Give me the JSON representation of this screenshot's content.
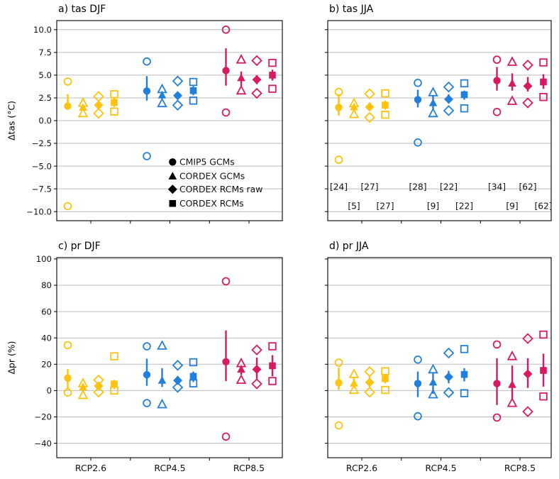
{
  "chart_data": {
    "type": "scatter",
    "grid": true,
    "legend_position": "lower-right-of-panel-a",
    "colors": {
      "grid": "#BBBBBB",
      "axis": "#000000",
      "text": "#111111",
      "legend_marker": "#000000"
    },
    "scenarios": [
      {
        "label": "RCP2.6",
        "color": "#FFC20E"
      },
      {
        "label": "RCP4.5",
        "color": "#2280DC"
      },
      {
        "label": "RCP8.5",
        "color": "#D81B60"
      }
    ],
    "datasets": [
      {
        "label": "CMIP5 GCMs",
        "marker": "circle"
      },
      {
        "label": "CORDEX GCMs",
        "marker": "triangle"
      },
      {
        "label": "CORDEX RCMs raw",
        "marker": "diamond"
      },
      {
        "label": "CORDEX RCMs",
        "marker": "square"
      }
    ],
    "panels": [
      {
        "id": "a",
        "title": "a) tas DJF",
        "ylabel": "Δtas (°C)",
        "ylim": [
          -11,
          11
        ],
        "yticks": [
          -10,
          -7.5,
          -5,
          -2.5,
          0,
          2.5,
          5,
          7.5,
          10
        ],
        "ytick_labels": [
          "−10.0",
          "−7.5",
          "−5.0",
          "−2.5",
          "0.0",
          "2.5",
          "5.0",
          "7.5",
          "10.0"
        ],
        "show_xtick_labels": false,
        "legend_in_panel": true,
        "groups": [
          {
            "scenario": "RCP2.6",
            "series": [
              {
                "marker": "circle",
                "median": 1.6,
                "bar": [
                  1.2,
                  2.9
                ],
                "outliers": [
                  4.3,
                  -9.4
                ]
              },
              {
                "marker": "triangle",
                "median": 1.45,
                "bar": [
                  1.2,
                  1.75
                ],
                "outliers": [
                  1.95,
                  0.8
                ]
              },
              {
                "marker": "diamond",
                "median": 1.7,
                "bar": [
                  1.4,
                  2.0
                ],
                "outliers": [
                  2.65,
                  0.8
                ]
              },
              {
                "marker": "square",
                "median": 2.0,
                "bar": [
                  1.5,
                  2.5
                ],
                "outliers": [
                  2.9,
                  1.0
                ]
              }
            ]
          },
          {
            "scenario": "RCP4.5",
            "series": [
              {
                "marker": "circle",
                "median": 3.25,
                "bar": [
                  2.2,
                  4.9
                ],
                "outliers": [
                  6.5,
                  -3.9
                ]
              },
              {
                "marker": "triangle",
                "median": 2.8,
                "bar": [
                  2.35,
                  3.2
                ],
                "outliers": [
                  3.45,
                  1.9
                ]
              },
              {
                "marker": "diamond",
                "median": 2.75,
                "bar": [
                  2.3,
                  3.1
                ],
                "outliers": [
                  4.35,
                  1.7
                ]
              },
              {
                "marker": "square",
                "median": 3.3,
                "bar": [
                  2.8,
                  3.8
                ],
                "outliers": [
                  4.25,
                  2.2
                ]
              }
            ]
          },
          {
            "scenario": "RCP8.5",
            "series": [
              {
                "marker": "circle",
                "median": 5.5,
                "bar": [
                  3.85,
                  7.95
                ],
                "outliers": [
                  10.0,
                  0.9
                ]
              },
              {
                "marker": "triangle",
                "median": 4.7,
                "bar": [
                  3.8,
                  5.4
                ],
                "outliers": [
                  6.7,
                  3.3
                ]
              },
              {
                "marker": "diamond",
                "median": 4.5,
                "bar": [
                  4.0,
                  5.0
                ],
                "outliers": [
                  6.6,
                  3.0
                ]
              },
              {
                "marker": "square",
                "median": 5.0,
                "bar": [
                  4.4,
                  5.6
                ],
                "outliers": [
                  6.35,
                  3.5
                ]
              }
            ]
          }
        ]
      },
      {
        "id": "b",
        "title": "b) tas JJA",
        "ylabel": "",
        "ylim": [
          -11,
          11
        ],
        "yticks": [
          -10,
          -7.5,
          -5,
          -2.5,
          0,
          2.5,
          5,
          7.5,
          10
        ],
        "show_xtick_labels": false,
        "legend_in_panel": false,
        "counts": [
          [
            24,
            5,
            27,
            27
          ],
          [
            28,
            9,
            22,
            22
          ],
          [
            34,
            9,
            62,
            62
          ]
        ],
        "groups": [
          {
            "scenario": "RCP2.6",
            "series": [
              {
                "marker": "circle",
                "median": 1.45,
                "bar": [
                  0.55,
                  2.9
                ],
                "outliers": [
                  3.15,
                  -4.3
                ]
              },
              {
                "marker": "triangle",
                "median": 1.5,
                "bar": [
                  1.15,
                  1.8
                ],
                "outliers": [
                  1.9,
                  0.7
                ]
              },
              {
                "marker": "diamond",
                "median": 1.5,
                "bar": [
                  1.1,
                  2.0
                ],
                "outliers": [
                  2.95,
                  0.35
                ]
              },
              {
                "marker": "square",
                "median": 1.7,
                "bar": [
                  1.2,
                  2.2
                ],
                "outliers": [
                  3.0,
                  0.65
                ]
              }
            ]
          },
          {
            "scenario": "RCP4.5",
            "series": [
              {
                "marker": "circle",
                "median": 2.3,
                "bar": [
                  1.45,
                  3.4
                ],
                "outliers": [
                  4.15,
                  -2.4
                ]
              },
              {
                "marker": "triangle",
                "median": 1.95,
                "bar": [
                  1.2,
                  2.7
                ],
                "outliers": [
                  3.1,
                  0.8
                ]
              },
              {
                "marker": "diamond",
                "median": 2.35,
                "bar": [
                  1.9,
                  2.9
                ],
                "outliers": [
                  3.7,
                  1.1
                ]
              },
              {
                "marker": "square",
                "median": 2.85,
                "bar": [
                  2.3,
                  3.3
                ],
                "outliers": [
                  4.1,
                  1.35
                ]
              }
            ]
          },
          {
            "scenario": "RCP8.5",
            "series": [
              {
                "marker": "circle",
                "median": 4.4,
                "bar": [
                  3.3,
                  5.9
                ],
                "outliers": [
                  6.7,
                  0.95
                ]
              },
              {
                "marker": "triangle",
                "median": 4.1,
                "bar": [
                  3.3,
                  5.2
                ],
                "outliers": [
                  6.45,
                  2.15
                ]
              },
              {
                "marker": "diamond",
                "median": 3.8,
                "bar": [
                  3.2,
                  4.8
                ],
                "outliers": [
                  6.1,
                  1.95
                ]
              },
              {
                "marker": "square",
                "median": 4.25,
                "bar": [
                  3.5,
                  5.1
                ],
                "outliers": [
                  6.4,
                  2.6
                ]
              }
            ]
          }
        ]
      },
      {
        "id": "c",
        "title": "c) pr DJF",
        "ylabel": "Δpr (%)",
        "ylim": [
          -51,
          101
        ],
        "yticks": [
          -40,
          -20,
          0,
          20,
          40,
          60,
          80,
          100
        ],
        "ytick_labels": [
          "−40",
          "−20",
          "0",
          "20",
          "40",
          "60",
          "80",
          "100"
        ],
        "show_xtick_labels": true,
        "legend_in_panel": false,
        "groups": [
          {
            "scenario": "RCP2.6",
            "series": [
              {
                "marker": "circle",
                "median": 9.5,
                "bar": [
                  1.5,
                  16.5
                ],
                "outliers": [
                  34.5,
                  -1.5
                ]
              },
              {
                "marker": "triangle",
                "median": 2.7,
                "bar": [
                  0.5,
                  4.5
                ],
                "outliers": [
                  5.5,
                  -3.5
                ]
              },
              {
                "marker": "diamond",
                "median": 3.5,
                "bar": [
                  1.5,
                  5.5
                ],
                "outliers": [
                  8.0,
                  -1.2
                ]
              },
              {
                "marker": "square",
                "median": 5.0,
                "bar": [
                  1.0,
                  8.0
                ],
                "outliers": [
                  26.0,
                  0.0
                ]
              }
            ]
          },
          {
            "scenario": "RCP4.5",
            "series": [
              {
                "marker": "circle",
                "median": 12.0,
                "bar": [
                  3.6,
                  24.2
                ],
                "outliers": [
                  33.6,
                  -9.5
                ]
              },
              {
                "marker": "triangle",
                "median": 7.7,
                "bar": [
                  2.7,
                  17.0
                ],
                "outliers": [
                  34.0,
                  -10.5
                ]
              },
              {
                "marker": "diamond",
                "median": 7.7,
                "bar": [
                  4.5,
                  11.0
                ],
                "outliers": [
                  19.2,
                  2.4
                ]
              },
              {
                "marker": "square",
                "median": 10.8,
                "bar": [
                  6.5,
                  14.5
                ],
                "outliers": [
                  21.5,
                  5.5
                ]
              }
            ]
          },
          {
            "scenario": "RCP8.5",
            "series": [
              {
                "marker": "circle",
                "median": 21.9,
                "bar": [
                  7.2,
                  45.7
                ],
                "outliers": [
                  83.0,
                  -35.0
                ]
              },
              {
                "marker": "triangle",
                "median": 16.1,
                "bar": [
                  12.0,
                  19.0
                ],
                "outliers": [
                  20.7,
                  8.1
                ]
              },
              {
                "marker": "diamond",
                "median": 16.1,
                "bar": [
                  9.0,
                  25.1
                ],
                "outliers": [
                  30.9,
                  5.1
                ]
              },
              {
                "marker": "square",
                "median": 18.8,
                "bar": [
                  10.8,
                  26.9
                ],
                "outliers": [
                  33.6,
                  7.2
                ]
              }
            ]
          }
        ]
      },
      {
        "id": "d",
        "title": "d) pr JJA",
        "ylabel": "",
        "ylim": [
          -51,
          101
        ],
        "yticks": [
          -40,
          -20,
          0,
          20,
          40,
          60,
          80,
          100
        ],
        "show_xtick_labels": true,
        "legend_in_panel": false,
        "groups": [
          {
            "scenario": "RCP2.6",
            "series": [
              {
                "marker": "circle",
                "median": 5.9,
                "bar": [
                  0.5,
                  17.4
                ],
                "outliers": [
                  21.2,
                  -26.5
                ]
              },
              {
                "marker": "triangle",
                "median": 5.5,
                "bar": [
                  2.0,
                  9.5
                ],
                "outliers": [
                  12.5,
                  0.5
                ]
              },
              {
                "marker": "diamond",
                "median": 6.3,
                "bar": [
                  2.5,
                  10.5
                ],
                "outliers": [
                  14.4,
                  -1.2
                ]
              },
              {
                "marker": "square",
                "median": 9.0,
                "bar": [
                  5.5,
                  12.5
                ],
                "outliers": [
                  14.7,
                  0.5
                ]
              }
            ]
          },
          {
            "scenario": "RCP4.5",
            "series": [
              {
                "marker": "circle",
                "median": 5.4,
                "bar": [
                  -5.0,
                  14.5
                ],
                "outliers": [
                  23.5,
                  -19.5
                ]
              },
              {
                "marker": "triangle",
                "median": 6.3,
                "bar": [
                  -2.5,
                  13.5
                ],
                "outliers": [
                  16.0,
                  -3.0
                ]
              },
              {
                "marker": "diamond",
                "median": 10.4,
                "bar": [
                  5.5,
                  15.0
                ],
                "outliers": [
                  28.5,
                  -1.5
                ]
              },
              {
                "marker": "square",
                "median": 12.2,
                "bar": [
                  7.0,
                  17.0
                ],
                "outliers": [
                  31.5,
                  -2.0
                ]
              }
            ]
          },
          {
            "scenario": "RCP8.5",
            "series": [
              {
                "marker": "circle",
                "median": 5.4,
                "bar": [
                  -11.0,
                  24.5
                ],
                "outliers": [
                  35.0,
                  -20.5
                ]
              },
              {
                "marker": "triangle",
                "median": 4.5,
                "bar": [
                  -7.0,
                  19.0
                ],
                "outliers": [
                  26.0,
                  -9.5
                ]
              },
              {
                "marker": "diamond",
                "median": 12.6,
                "bar": [
                  2.0,
                  24.5
                ],
                "outliers": [
                  39.5,
                  -16.0
                ]
              },
              {
                "marker": "square",
                "median": 15.3,
                "bar": [
                  3.0,
                  28.0
                ],
                "outliers": [
                  42.5,
                  -4.5
                ]
              }
            ]
          }
        ]
      }
    ]
  }
}
